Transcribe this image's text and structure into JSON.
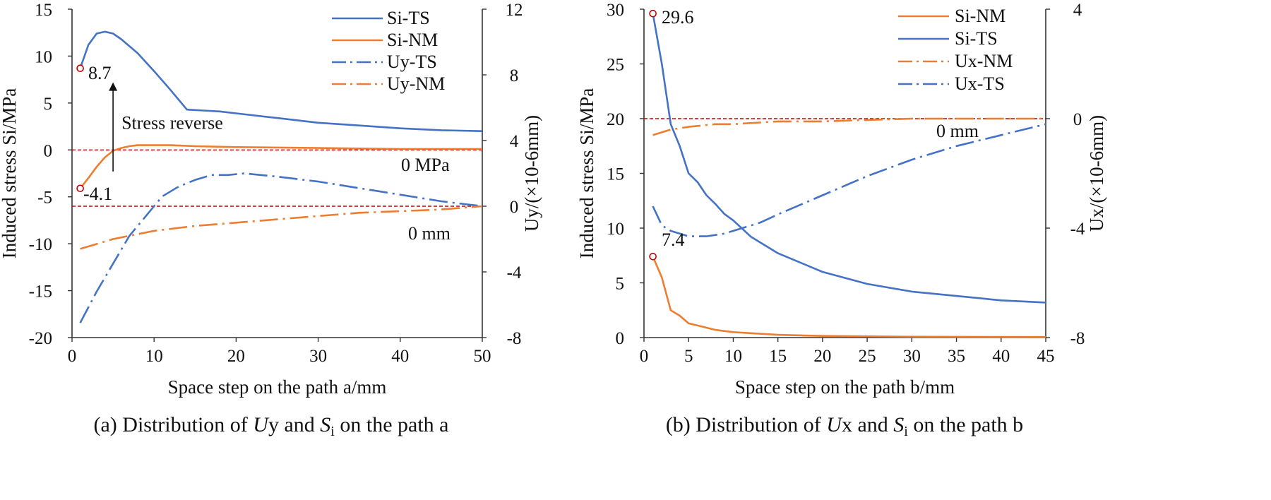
{
  "colors": {
    "blue": "#4472C4",
    "orange": "#ED7D31",
    "ref": "#C00000",
    "axis": "#333333"
  },
  "chart_data": [
    {
      "id": "a",
      "type": "line",
      "caption": {
        "prefix": "(a) Distribution of ",
        "var1": "U",
        "var1_suffix": "y",
        "mid": " and ",
        "var2": "S",
        "var2_sub": "i",
        "suffix": " on the path a"
      },
      "xlabel": "Space step on the path a/mm",
      "ylabel": "Induced stress Si/MPa",
      "y2label": "Uy/(×10-6mm)",
      "xlim": [
        0,
        50
      ],
      "ylim": [
        -20,
        15
      ],
      "y2lim": [
        -8,
        12
      ],
      "xticks": [
        "0",
        "10",
        "20",
        "30",
        "40",
        "50"
      ],
      "yticks": [
        "-20",
        "-15",
        "-10",
        "-5",
        "0",
        "5",
        "10",
        "15"
      ],
      "y2ticks": [
        "-8",
        "-4",
        "0",
        "4",
        "8",
        "12"
      ],
      "legend": [
        {
          "name": "Si-TS",
          "color": "blue",
          "dash": "solid"
        },
        {
          "name": "Si-NM",
          "color": "orange",
          "dash": "solid"
        },
        {
          "name": "Uy-TS",
          "color": "blue",
          "dash": "dashdot"
        },
        {
          "name": "Uy-NM",
          "color": "orange",
          "dash": "dashdot"
        }
      ],
      "series": [
        {
          "name": "Si-TS",
          "axis": "left",
          "color": "blue",
          "dash": "solid",
          "x": [
            1,
            2,
            3,
            4,
            5,
            6,
            8,
            10,
            12,
            14,
            16,
            18,
            20,
            25,
            30,
            35,
            40,
            45,
            50
          ],
          "y": [
            8.7,
            11.2,
            12.4,
            12.6,
            12.4,
            11.8,
            10.3,
            8.4,
            6.4,
            4.3,
            4.2,
            4.1,
            3.9,
            3.4,
            2.9,
            2.6,
            2.3,
            2.1,
            2.0
          ]
        },
        {
          "name": "Si-NM",
          "axis": "left",
          "color": "orange",
          "dash": "solid",
          "x": [
            1,
            2,
            3,
            4,
            5,
            6,
            7,
            8,
            10,
            12,
            15,
            20,
            30,
            40,
            50
          ],
          "y": [
            -4.1,
            -3.0,
            -1.8,
            -0.8,
            -0.1,
            0.2,
            0.4,
            0.5,
            0.5,
            0.5,
            0.4,
            0.3,
            0.2,
            0.1,
            0.1
          ]
        },
        {
          "name": "Uy-TS",
          "axis": "right",
          "color": "blue",
          "dash": "dashdot",
          "x": [
            1,
            3,
            5,
            7,
            9,
            11,
            13,
            15,
            17,
            19,
            21,
            23,
            25,
            30,
            35,
            40,
            45,
            50
          ],
          "y": [
            -7.1,
            -5.2,
            -3.5,
            -1.8,
            -0.6,
            0.6,
            1.2,
            1.6,
            1.9,
            1.9,
            2.0,
            1.9,
            1.8,
            1.5,
            1.1,
            0.7,
            0.3,
            0.0
          ]
        },
        {
          "name": "Uy-NM",
          "axis": "right",
          "color": "orange",
          "dash": "dashdot",
          "x": [
            1,
            3,
            5,
            7,
            10,
            15,
            20,
            25,
            30,
            35,
            40,
            45,
            50
          ],
          "y": [
            -2.6,
            -2.3,
            -2.0,
            -1.8,
            -1.5,
            -1.2,
            -1.0,
            -0.8,
            -0.6,
            -0.4,
            -0.3,
            -0.2,
            0.0
          ]
        }
      ],
      "reflines": [
        {
          "axis": "left",
          "value": 0,
          "label": "0 MPa"
        },
        {
          "axis": "left",
          "value": -6,
          "label": "0 mm"
        }
      ],
      "markers": [
        {
          "axis": "left",
          "x": 1,
          "y": 8.7,
          "label": "8.7"
        },
        {
          "axis": "left",
          "x": 1,
          "y": -4.1,
          "label": "-4.1"
        }
      ],
      "arrow": {
        "x": 5,
        "from": -2.3,
        "to": 7.2,
        "label": "Stress reverse"
      }
    },
    {
      "id": "b",
      "type": "line",
      "caption": {
        "prefix": "(b) Distribution of ",
        "var1": "U",
        "var1_suffix": "x",
        "mid": " and ",
        "var2": "S",
        "var2_sub": "i",
        "suffix": " on the path b"
      },
      "xlabel": "Space step on the path b/mm",
      "ylabel": "Induced stress Si/MPa",
      "y2label": "Ux/(×10-6mm)",
      "xlim": [
        0,
        45
      ],
      "ylim": [
        0,
        30
      ],
      "y2lim": [
        -8,
        4
      ],
      "xticks": [
        "0",
        "5",
        "10",
        "15",
        "20",
        "25",
        "30",
        "35",
        "40",
        "45"
      ],
      "yticks": [
        "0",
        "5",
        "10",
        "15",
        "20",
        "25",
        "30"
      ],
      "y2ticks": [
        "-8",
        "-4",
        "0",
        "4"
      ],
      "legend": [
        {
          "name": "Si-NM",
          "color": "orange",
          "dash": "solid"
        },
        {
          "name": "Si-TS",
          "color": "blue",
          "dash": "solid"
        },
        {
          "name": "Ux-NM",
          "color": "orange",
          "dash": "dashdot"
        },
        {
          "name": "Ux-TS",
          "color": "blue",
          "dash": "dashdot"
        }
      ],
      "series": [
        {
          "name": "Si-NM",
          "axis": "left",
          "color": "orange",
          "dash": "solid",
          "x": [
            1,
            2,
            3,
            4,
            5,
            6,
            8,
            10,
            15,
            20,
            30,
            45
          ],
          "y": [
            7.4,
            5.5,
            2.5,
            2.0,
            1.3,
            1.1,
            0.7,
            0.5,
            0.25,
            0.15,
            0.08,
            0.05
          ]
        },
        {
          "name": "Si-TS",
          "axis": "left",
          "color": "blue",
          "dash": "solid",
          "x": [
            1,
            2,
            3,
            4,
            5,
            6,
            7,
            8,
            9,
            10,
            12,
            15,
            20,
            25,
            30,
            35,
            40,
            45
          ],
          "y": [
            29.6,
            25.0,
            19.5,
            17.5,
            15.0,
            14.2,
            13.0,
            12.2,
            11.3,
            10.7,
            9.2,
            7.7,
            6.0,
            4.9,
            4.2,
            3.8,
            3.4,
            3.2
          ]
        },
        {
          "name": "Ux-NM",
          "axis": "right",
          "color": "orange",
          "dash": "dashdot",
          "x": [
            1,
            3,
            5,
            8,
            10,
            15,
            20,
            25,
            30,
            35,
            40,
            45
          ],
          "y": [
            -0.6,
            -0.4,
            -0.3,
            -0.2,
            -0.2,
            -0.1,
            -0.1,
            -0.05,
            0.0,
            0.0,
            0.0,
            0.0
          ]
        },
        {
          "name": "Ux-TS",
          "axis": "right",
          "color": "blue",
          "dash": "dashdot",
          "x": [
            1,
            2,
            3,
            5,
            7,
            9,
            11,
            13,
            15,
            20,
            25,
            30,
            35,
            40,
            45
          ],
          "y": [
            -3.2,
            -3.9,
            -4.1,
            -4.3,
            -4.3,
            -4.2,
            -4.0,
            -3.8,
            -3.5,
            -2.8,
            -2.1,
            -1.5,
            -1.0,
            -0.6,
            -0.2
          ]
        }
      ],
      "reflines": [
        {
          "axis": "left",
          "value": 20,
          "label": "0 mm"
        }
      ],
      "markers": [
        {
          "axis": "left",
          "x": 1,
          "y": 29.6,
          "label": "29.6"
        },
        {
          "axis": "left",
          "x": 1,
          "y": 7.4,
          "label": "7.4"
        }
      ]
    }
  ]
}
